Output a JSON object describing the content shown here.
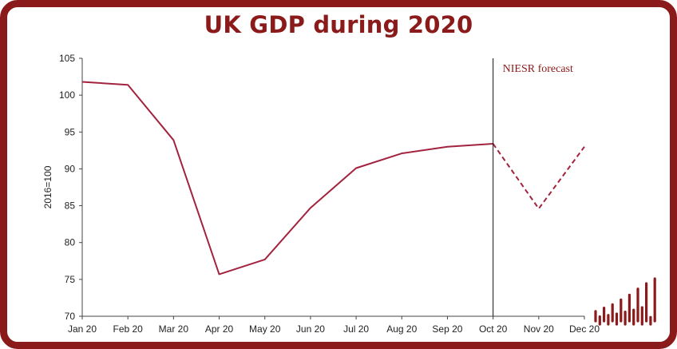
{
  "colors": {
    "brand": "#8b1a1a",
    "series": "#a3233e",
    "axis": "#444444"
  },
  "chart_data": {
    "type": "line",
    "title": "UK GDP during 2020",
    "xlabel": "",
    "ylabel": "2016=100",
    "ylim": [
      70,
      105
    ],
    "yticks": [
      70,
      75,
      80,
      85,
      90,
      95,
      100,
      105
    ],
    "grid": false,
    "legend": "none",
    "categories": [
      "Jan 20",
      "Feb 20",
      "Mar 20",
      "Apr 20",
      "May 20",
      "Jun 20",
      "Jul 20",
      "Aug 20",
      "Sep 20",
      "Oct 20",
      "Nov 20",
      "Dec 20"
    ],
    "series": [
      {
        "style": "solid",
        "points": [
          {
            "x": "Jan 20",
            "y": 101.8
          },
          {
            "x": "Feb 20",
            "y": 101.4
          },
          {
            "x": "Mar 20",
            "y": 93.9
          },
          {
            "x": "Apr 20",
            "y": 75.7
          },
          {
            "x": "May 20",
            "y": 77.7
          },
          {
            "x": "Jun 20",
            "y": 84.7
          },
          {
            "x": "Jul 20",
            "y": 90.1
          },
          {
            "x": "Aug 20",
            "y": 92.1
          },
          {
            "x": "Sep 20",
            "y": 93.0
          },
          {
            "x": "Oct 20",
            "y": 93.4
          }
        ]
      },
      {
        "style": "dashed",
        "points": [
          {
            "x": "Oct 20",
            "y": 93.4
          },
          {
            "x": "Nov 20",
            "y": 84.6
          },
          {
            "x": "Dec 20",
            "y": 93.0
          }
        ]
      }
    ],
    "annotations": [
      {
        "text": "NIESR forecast",
        "x": "Oct 20",
        "type": "vertical-line"
      }
    ]
  }
}
